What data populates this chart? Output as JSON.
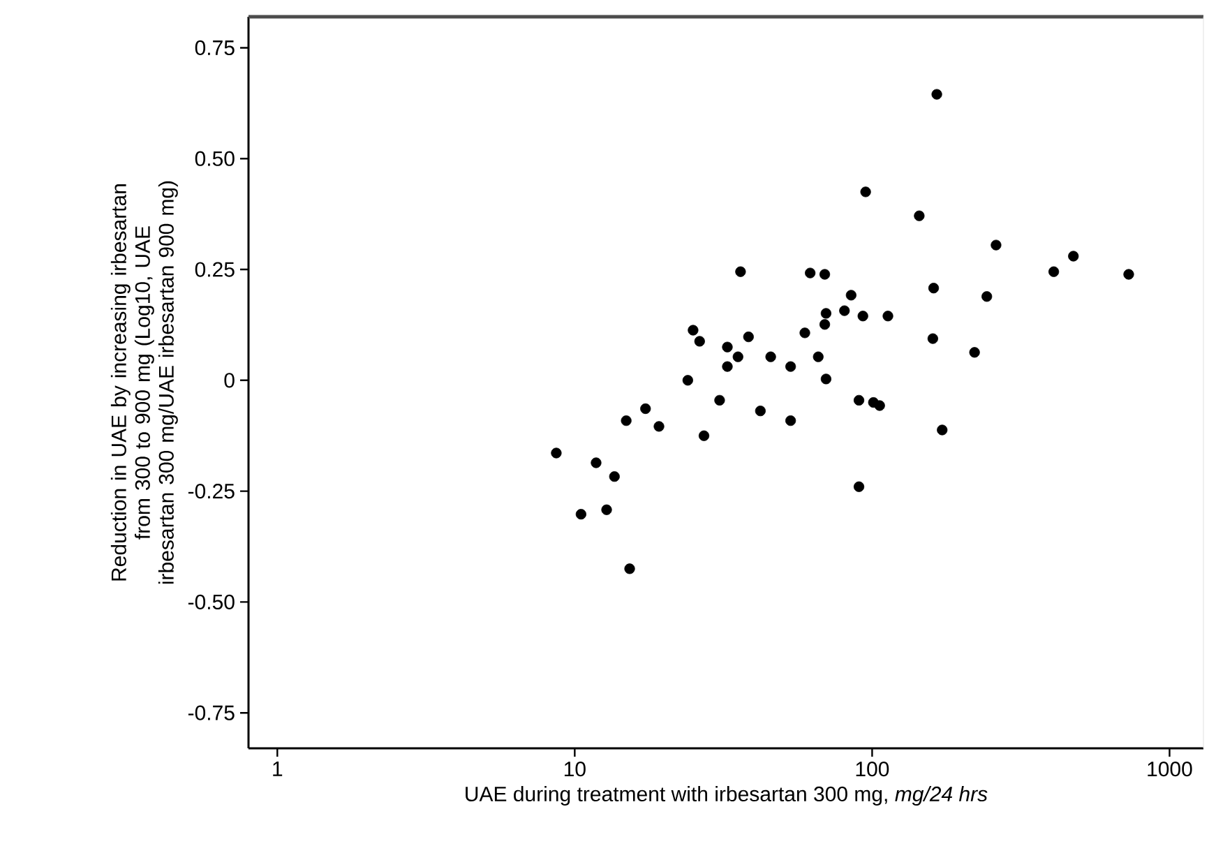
{
  "chart_data": {
    "type": "scatter",
    "xlabel": "UAE during treatment with irbesartan 300 mg, *mg/24 hrs*",
    "ylabel": "Reduction in UAE by increasing irbesartan from 300 to 900 mg (Log10, UAE irbesartan 300 mg/UAE irbesartan 900 mg)",
    "log": "x",
    "color": "#000000",
    "xlim": [
      0.8,
      1300
    ],
    "ylim": [
      -0.83,
      0.82
    ],
    "xticks": [
      1,
      10,
      100,
      1000
    ],
    "yticks": [
      {
        "value": -0.75,
        "label": "-0.75"
      },
      {
        "value": -0.5,
        "label": "-0.50"
      },
      {
        "value": -0.25,
        "label": "-0.25"
      },
      0,
      {
        "value": 0.25,
        "label": "0.25"
      },
      {
        "value": 0.5,
        "label": "0.50"
      },
      {
        "value": 0.75,
        "label": "0.75"
      }
    ],
    "x": [
      36.1,
      25.0,
      26.3,
      38.4,
      32.6,
      35.4,
      32.6,
      45.6,
      53.2,
      24.0,
      30.7,
      17.3,
      14.9,
      19.2,
      27.2,
      42.1,
      53.2,
      8.67,
      11.8,
      13.6,
      10.5,
      12.8,
      15.3,
      165,
      95.1,
      144,
      261,
      475,
      408,
      729,
      61.9,
      69.3,
      161,
      243,
      85.0,
      80.7,
      93.1,
      113,
      70.0,
      69.3,
      59.4,
      65.9,
      70.0,
      160,
      221,
      90.3,
      101,
      106,
      172,
      90.3
    ],
    "values": [
      0.245,
      0.113,
      0.088,
      0.098,
      0.075,
      0.053,
      0.031,
      0.053,
      0.031,
      0.0,
      -0.045,
      -0.064,
      -0.091,
      -0.104,
      -0.125,
      -0.069,
      -0.091,
      -0.164,
      -0.186,
      -0.217,
      -0.302,
      -0.292,
      -0.425,
      0.645,
      0.425,
      0.371,
      0.305,
      0.28,
      0.245,
      0.239,
      0.242,
      0.239,
      0.208,
      0.189,
      0.192,
      0.157,
      0.145,
      0.145,
      0.151,
      0.126,
      0.107,
      0.053,
      0.003,
      0.094,
      0.063,
      -0.045,
      -0.05,
      -0.057,
      -0.112,
      -0.24
    ]
  }
}
